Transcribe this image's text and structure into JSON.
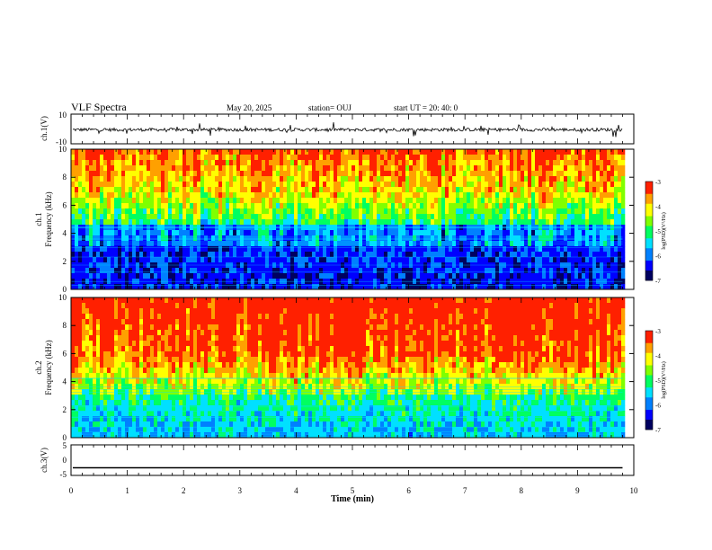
{
  "header": {
    "title": "VLF Spectra",
    "date": "May 20, 2025",
    "station": "station= OUJ",
    "start": "start  UT  =   20: 40: 0"
  },
  "colors": {
    "colormap": [
      "#000060",
      "#0000ff",
      "#0080ff",
      "#00e0ff",
      "#00ff60",
      "#80ff00",
      "#ffff00",
      "#ffa000",
      "#ff2000",
      "#ffffff"
    ],
    "waveform": "#000000"
  },
  "chart_data": [
    {
      "type": "line",
      "panel": "ch1-waveform",
      "ylabel": "ch.1(V)",
      "ylim": [
        -10,
        10
      ],
      "yticks": [
        "10",
        "-10"
      ],
      "description_level": -0.5
    },
    {
      "type": "heatmap",
      "panel": "ch1-spectrogram",
      "ylabel_line1": "ch.1",
      "ylabel_line2": "Frequency  (kHz)",
      "ylim": [
        0,
        10
      ],
      "yticks": [
        "0",
        "2",
        "4",
        "6",
        "8",
        "10"
      ],
      "colorbar": {
        "label": "log(PSD)(V²/Hz)",
        "range": [
          -7,
          -3
        ],
        "ticks": [
          "-3",
          "-4",
          "-5",
          "-6",
          "-7"
        ]
      }
    },
    {
      "type": "heatmap",
      "panel": "ch2-spectrogram",
      "ylabel_line1": "ch.2",
      "ylabel_line2": "Frequency  (kHz)",
      "ylim": [
        0,
        10
      ],
      "yticks": [
        "0",
        "2",
        "4",
        "6",
        "8",
        "10"
      ],
      "colorbar": {
        "label": "log(PSD)(V²/Hz)",
        "range": [
          -7,
          -3
        ],
        "ticks": [
          "-3",
          "-4",
          "-5",
          "-6",
          "-7"
        ]
      }
    },
    {
      "type": "line",
      "panel": "ch3-waveform",
      "ylabel": "ch.3(V)",
      "ylim": [
        -5,
        5
      ],
      "yticks": [
        "5",
        "0",
        "-5"
      ],
      "level": -2.5
    }
  ],
  "xaxis": {
    "label": "Time  (min)",
    "range": [
      0,
      10
    ],
    "data_end": 9.8,
    "ticks": [
      "0",
      "1",
      "2",
      "3",
      "4",
      "5",
      "6",
      "7",
      "8",
      "9",
      "10"
    ]
  }
}
